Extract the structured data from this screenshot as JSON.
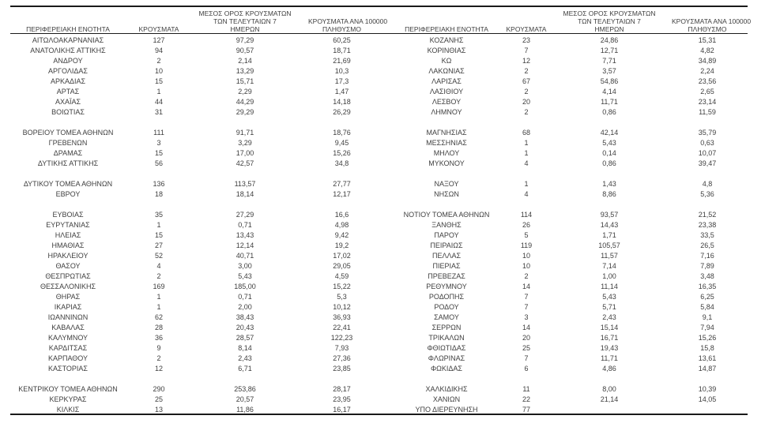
{
  "columns": {
    "region": "ΠΕΡΙΦΕΡΕΙΑΚΗ ΕΝΟΤΗΤΑ",
    "cases": "ΚΡΟΥΣΜΑΤΑ",
    "avg7_line1": "ΜΕΣΟΣ ΟΡΟΣ ΚΡΟΥΣΜΑΤΩΝ",
    "avg7_line2": "ΤΩΝ ΤΕΛΕΥΤΑΙΩΝ 7",
    "avg7_line3": "ΗΜΕΡΩΝ",
    "per100k_line1": "ΚΡΟΥΣΜΑΤΑ ΑΝΑ 100000",
    "per100k_line2": "ΠΛΗΘΥΣΜΟ"
  },
  "colors": {
    "text": "#3f3f3f",
    "rule": "#1a1a1a",
    "background": "#ffffff"
  },
  "tables": [
    {
      "side": "left",
      "rows": [
        {
          "region": "ΑΙΤΩΛΟΑΚΑΡΝΑΝΙΑΣ",
          "cases": "127",
          "avg7": "97,29",
          "per100k": "60,25"
        },
        {
          "region": "ΑΝΑΤΟΛΙΚΗΣ ΑΤΤΙΚΗΣ",
          "cases": "94",
          "avg7": "90,57",
          "per100k": "18,71"
        },
        {
          "region": "ΑΝΔΡΟΥ",
          "cases": "2",
          "avg7": "2,14",
          "per100k": "21,69"
        },
        {
          "region": "ΑΡΓΟΛΙΔΑΣ",
          "cases": "10",
          "avg7": "13,29",
          "per100k": "10,3"
        },
        {
          "region": "ΑΡΚΑΔΙΑΣ",
          "cases": "15",
          "avg7": "15,71",
          "per100k": "17,3"
        },
        {
          "region": "ΑΡΤΑΣ",
          "cases": "1",
          "avg7": "2,29",
          "per100k": "1,47"
        },
        {
          "region": "ΑΧΑΪΑΣ",
          "cases": "44",
          "avg7": "44,29",
          "per100k": "14,18"
        },
        {
          "region": "ΒΟΙΩΤΙΑΣ",
          "cases": "31",
          "avg7": "29,29",
          "per100k": "26,29"
        },
        {
          "region": "",
          "cases": "",
          "avg7": "",
          "per100k": ""
        },
        {
          "region": "ΒΟΡΕΙΟΥ ΤΟΜΕΑ ΑΘΗΝΩΝ",
          "cases": "111",
          "avg7": "91,71",
          "per100k": "18,76"
        },
        {
          "region": "ΓΡΕΒΕΝΩΝ",
          "cases": "3",
          "avg7": "3,29",
          "per100k": "9,45"
        },
        {
          "region": "ΔΡΑΜΑΣ",
          "cases": "15",
          "avg7": "17,00",
          "per100k": "15,26"
        },
        {
          "region": "ΔΥΤΙΚΗΣ ΑΤΤΙΚΗΣ",
          "cases": "56",
          "avg7": "42,57",
          "per100k": "34,8"
        },
        {
          "region": "",
          "cases": "",
          "avg7": "",
          "per100k": ""
        },
        {
          "region": "ΔΥΤΙΚΟΥ ΤΟΜΕΑ ΑΘΗΝΩΝ",
          "cases": "136",
          "avg7": "113,57",
          "per100k": "27,77"
        },
        {
          "region": "ΕΒΡΟΥ",
          "cases": "18",
          "avg7": "18,14",
          "per100k": "12,17"
        },
        {
          "region": "",
          "cases": "",
          "avg7": "",
          "per100k": ""
        },
        {
          "region": "ΕΥΒΟΙΑΣ",
          "cases": "35",
          "avg7": "27,29",
          "per100k": "16,6"
        },
        {
          "region": "ΕΥΡΥΤΑΝΙΑΣ",
          "cases": "1",
          "avg7": "0,71",
          "per100k": "4,98"
        },
        {
          "region": "ΗΛΕΙΑΣ",
          "cases": "15",
          "avg7": "13,43",
          "per100k": "9,42"
        },
        {
          "region": "ΗΜΑΘΙΑΣ",
          "cases": "27",
          "avg7": "12,14",
          "per100k": "19,2"
        },
        {
          "region": "ΗΡΑΚΛΕΙΟΥ",
          "cases": "52",
          "avg7": "40,71",
          "per100k": "17,02"
        },
        {
          "region": "ΘΑΣΟΥ",
          "cases": "4",
          "avg7": "3,00",
          "per100k": "29,05"
        },
        {
          "region": "ΘΕΣΠΡΩΤΙΑΣ",
          "cases": "2",
          "avg7": "5,43",
          "per100k": "4,59"
        },
        {
          "region": "ΘΕΣΣΑΛΟΝΙΚΗΣ",
          "cases": "169",
          "avg7": "185,00",
          "per100k": "15,22"
        },
        {
          "region": "ΘΗΡΑΣ",
          "cases": "1",
          "avg7": "0,71",
          "per100k": "5,3"
        },
        {
          "region": "ΙΚΑΡΙΑΣ",
          "cases": "1",
          "avg7": "2,00",
          "per100k": "10,12"
        },
        {
          "region": "ΙΩΑΝΝΙΝΩΝ",
          "cases": "62",
          "avg7": "38,43",
          "per100k": "36,93"
        },
        {
          "region": "ΚΑΒΑΛΑΣ",
          "cases": "28",
          "avg7": "20,43",
          "per100k": "22,41"
        },
        {
          "region": "ΚΑΛΥΜΝΟΥ",
          "cases": "36",
          "avg7": "28,57",
          "per100k": "122,23"
        },
        {
          "region": "ΚΑΡΔΙΤΣΑΣ",
          "cases": "9",
          "avg7": "8,14",
          "per100k": "7,93"
        },
        {
          "region": "ΚΑΡΠΑΘΟΥ",
          "cases": "2",
          "avg7": "2,43",
          "per100k": "27,36"
        },
        {
          "region": "ΚΑΣΤΟΡΙΑΣ",
          "cases": "12",
          "avg7": "6,71",
          "per100k": "23,85"
        },
        {
          "region": "",
          "cases": "",
          "avg7": "",
          "per100k": ""
        },
        {
          "region": "ΚΕΝΤΡΙΚΟΥ ΤΟΜΕΑ ΑΘΗΝΩΝ",
          "cases": "290",
          "avg7": "253,86",
          "per100k": "28,17"
        },
        {
          "region": "ΚΕΡΚΥΡΑΣ",
          "cases": "25",
          "avg7": "20,57",
          "per100k": "23,95"
        },
        {
          "region": "ΚΙΛΚΙΣ",
          "cases": "13",
          "avg7": "11,86",
          "per100k": "16,17"
        }
      ]
    },
    {
      "side": "right",
      "rows": [
        {
          "region": "ΚΟΖΑΝΗΣ",
          "cases": "23",
          "avg7": "24,86",
          "per100k": "15,31"
        },
        {
          "region": "ΚΟΡΙΝΘΙΑΣ",
          "cases": "7",
          "avg7": "12,71",
          "per100k": "4,82"
        },
        {
          "region": "ΚΩ",
          "cases": "12",
          "avg7": "7,71",
          "per100k": "34,89"
        },
        {
          "region": "ΛΑΚΩΝΙΑΣ",
          "cases": "2",
          "avg7": "3,57",
          "per100k": "2,24"
        },
        {
          "region": "ΛΑΡΙΣΑΣ",
          "cases": "67",
          "avg7": "54,86",
          "per100k": "23,56"
        },
        {
          "region": "ΛΑΣΙΘΙΟΥ",
          "cases": "2",
          "avg7": "4,14",
          "per100k": "2,65"
        },
        {
          "region": "ΛΕΣΒΟΥ",
          "cases": "20",
          "avg7": "11,71",
          "per100k": "23,14"
        },
        {
          "region": "ΛΗΜΝΟΥ",
          "cases": "2",
          "avg7": "0,86",
          "per100k": "11,59"
        },
        {
          "region": "",
          "cases": "",
          "avg7": "",
          "per100k": ""
        },
        {
          "region": "ΜΑΓΝΗΣΙΑΣ",
          "cases": "68",
          "avg7": "42,14",
          "per100k": "35,79"
        },
        {
          "region": "ΜΕΣΣΗΝΙΑΣ",
          "cases": "1",
          "avg7": "5,43",
          "per100k": "0,63"
        },
        {
          "region": "ΜΗΛΟΥ",
          "cases": "1",
          "avg7": "0,14",
          "per100k": "10,07"
        },
        {
          "region": "ΜΥΚΟΝΟΥ",
          "cases": "4",
          "avg7": "0,86",
          "per100k": "39,47"
        },
        {
          "region": "",
          "cases": "",
          "avg7": "",
          "per100k": ""
        },
        {
          "region": "ΝΑΞΟΥ",
          "cases": "1",
          "avg7": "1,43",
          "per100k": "4,8"
        },
        {
          "region": "ΝΗΣΩΝ",
          "cases": "4",
          "avg7": "8,86",
          "per100k": "5,36"
        },
        {
          "region": "",
          "cases": "",
          "avg7": "",
          "per100k": ""
        },
        {
          "region": "ΝΟΤΙΟΥ ΤΟΜΕΑ ΑΘΗΝΩΝ",
          "cases": "114",
          "avg7": "93,57",
          "per100k": "21,52"
        },
        {
          "region": "ΞΑΝΘΗΣ",
          "cases": "26",
          "avg7": "14,43",
          "per100k": "23,38"
        },
        {
          "region": "ΠΑΡΟΥ",
          "cases": "5",
          "avg7": "1,71",
          "per100k": "33,5"
        },
        {
          "region": "ΠΕΙΡΑΙΩΣ",
          "cases": "119",
          "avg7": "105,57",
          "per100k": "26,5"
        },
        {
          "region": "ΠΕΛΛΑΣ",
          "cases": "10",
          "avg7": "11,57",
          "per100k": "7,16"
        },
        {
          "region": "ΠΙΕΡΙΑΣ",
          "cases": "10",
          "avg7": "7,14",
          "per100k": "7,89"
        },
        {
          "region": "ΠΡΕΒΕΖΑΣ",
          "cases": "2",
          "avg7": "1,00",
          "per100k": "3,48"
        },
        {
          "region": "ΡΕΘΥΜΝΟΥ",
          "cases": "14",
          "avg7": "11,14",
          "per100k": "16,35"
        },
        {
          "region": "ΡΟΔΟΠΗΣ",
          "cases": "7",
          "avg7": "5,43",
          "per100k": "6,25"
        },
        {
          "region": "ΡΟΔΟΥ",
          "cases": "7",
          "avg7": "5,71",
          "per100k": "5,84"
        },
        {
          "region": "ΣΑΜΟΥ",
          "cases": "3",
          "avg7": "2,43",
          "per100k": "9,1"
        },
        {
          "region": "ΣΕΡΡΩΝ",
          "cases": "14",
          "avg7": "15,14",
          "per100k": "7,94"
        },
        {
          "region": "ΤΡΙΚΑΛΩΝ",
          "cases": "20",
          "avg7": "16,71",
          "per100k": "15,26"
        },
        {
          "region": "ΦΘΙΩΤΙΔΑΣ",
          "cases": "25",
          "avg7": "19,43",
          "per100k": "15,8"
        },
        {
          "region": "ΦΛΩΡΙΝΑΣ",
          "cases": "7",
          "avg7": "11,71",
          "per100k": "13,61"
        },
        {
          "region": "ΦΩΚΙΔΑΣ",
          "cases": "6",
          "avg7": "4,86",
          "per100k": "14,87"
        },
        {
          "region": "",
          "cases": "",
          "avg7": "",
          "per100k": ""
        },
        {
          "region": "ΧΑΛΚΙΔΙΚΗΣ",
          "cases": "11",
          "avg7": "8,00",
          "per100k": "10,39"
        },
        {
          "region": "ΧΑΝΙΩΝ",
          "cases": "22",
          "avg7": "21,14",
          "per100k": "14,05"
        },
        {
          "region": "ΥΠΟ ΔΙΕΡΕΥΝΗΣΗ",
          "cases": "77",
          "avg7": "",
          "per100k": ""
        }
      ]
    }
  ]
}
